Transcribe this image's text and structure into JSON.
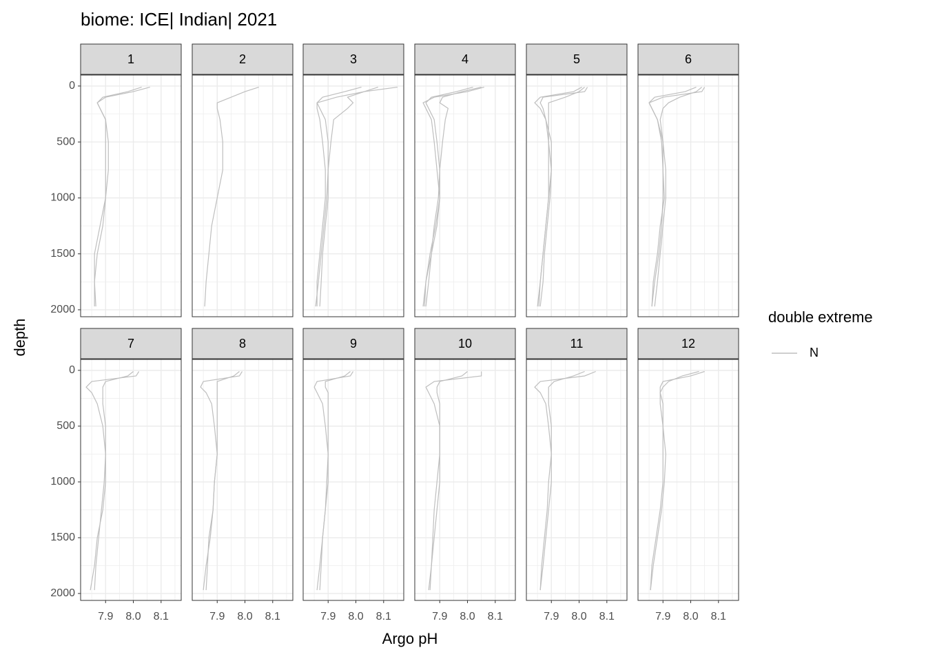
{
  "chart_data": {
    "type": "line",
    "title": "biome: ICE| Indian| 2021",
    "x_label": "Argo pH",
    "y_label": "depth",
    "xlim": [
      7.81,
      8.1725
    ],
    "xticks": [
      7.9,
      {
        "value": 8.0,
        "label": "8.0"
      },
      8.1
    ],
    "x_minor_grid": [
      7.85,
      7.95,
      8.05,
      8.15
    ],
    "ylim": [
      -98,
      2062
    ],
    "y_reversed": true,
    "yticks": [
      0,
      500,
      1000,
      1500,
      2000
    ],
    "y_minor_grid": [
      250,
      750,
      1250,
      1750
    ],
    "grid": true,
    "legend": {
      "title": "double extreme",
      "entries": [
        {
          "name": "N",
          "color": "#bebebe"
        }
      ]
    },
    "y": [
      10,
      50,
      100,
      150,
      200,
      300,
      500,
      750,
      1000,
      1250,
      1500,
      1750,
      1970
    ],
    "facets": [
      {
        "label": "1",
        "series": [
          {
            "values": [
              8.06,
              8.0,
              7.9,
              7.87,
              7.88,
              7.9,
              7.91,
              7.91,
              7.9,
              7.89,
              7.87,
              7.86,
              7.86
            ]
          },
          {
            "values": [
              8.03,
              7.98,
              7.89,
              7.87,
              7.88,
              7.9,
              7.9,
              7.9,
              7.9,
              7.88,
              7.86,
              7.86,
              7.865
            ]
          }
        ]
      },
      {
        "label": "2",
        "series": [
          {
            "values": [
              8.05,
              8.0,
              7.95,
              7.9,
              7.9,
              7.91,
              7.92,
              7.92,
              7.9,
              7.88,
              7.87,
              7.86,
              7.855
            ]
          }
        ]
      },
      {
        "label": "3",
        "series": [
          {
            "values": [
              8.08,
              8.03,
              7.93,
              7.86,
              7.86,
              7.87,
              7.88,
              7.89,
              7.89,
              7.88,
              7.87,
              7.86,
              7.86
            ]
          },
          {
            "values": [
              8.15,
              8.03,
              7.97,
              7.99,
              7.97,
              7.92,
              7.91,
              7.9,
              7.9,
              7.89,
              7.88,
              7.875,
              7.87
            ]
          },
          {
            "values": [
              8.02,
              7.96,
              7.88,
              7.86,
              7.87,
              7.89,
              7.9,
              7.9,
              7.895,
              7.885,
              7.875,
              7.865,
              7.855
            ]
          }
        ]
      },
      {
        "label": "4",
        "series": [
          {
            "values": [
              8.06,
              8.0,
              7.88,
              7.84,
              7.85,
              7.87,
              7.88,
              7.89,
              7.9,
              7.89,
              7.87,
              7.85,
              7.84
            ]
          },
          {
            "values": [
              8.05,
              7.98,
              7.91,
              7.9,
              7.93,
              7.92,
              7.91,
              7.9,
              7.895,
              7.88,
              7.87,
              7.86,
              7.85
            ]
          },
          {
            "values": [
              8.02,
              7.96,
              7.87,
              7.85,
              7.86,
              7.88,
              7.89,
              7.9,
              7.9,
              7.885,
              7.865,
              7.85,
              7.845
            ]
          }
        ]
      },
      {
        "label": "5",
        "series": [
          {
            "values": [
              8.03,
              8.02,
              7.87,
              7.86,
              7.87,
              7.88,
              7.9,
              7.9,
              7.89,
              7.88,
              7.87,
              7.86,
              7.855
            ]
          },
          {
            "values": [
              8.02,
              8.0,
              7.95,
              7.89,
              7.89,
              7.89,
              7.89,
              7.9,
              7.895,
              7.885,
              7.875,
              7.87,
              7.86
            ]
          },
          {
            "values": [
              8.01,
              7.98,
              7.86,
              7.84,
              7.86,
              7.88,
              7.89,
              7.89,
              7.89,
              7.88,
              7.87,
              7.86,
              7.85
            ]
          }
        ]
      },
      {
        "label": "6",
        "series": [
          {
            "values": [
              8.05,
              8.04,
              7.9,
              7.85,
              7.86,
              7.88,
              7.9,
              7.91,
              7.91,
              7.9,
              7.89,
              7.88,
              7.87
            ]
          },
          {
            "values": [
              8.04,
              8.02,
              7.96,
              7.92,
              7.9,
              7.89,
              7.9,
              7.9,
              7.905,
              7.89,
              7.88,
              7.865,
              7.86
            ]
          },
          {
            "values": [
              8.02,
              7.98,
              7.87,
              7.85,
              7.86,
              7.88,
              7.895,
              7.9,
              7.9,
              7.895,
              7.885,
              7.87,
              7.86
            ]
          }
        ]
      },
      {
        "label": "7",
        "series": [
          {
            "values": [
              8.02,
              8.01,
              7.85,
              7.83,
              7.85,
              7.87,
              7.89,
              7.9,
              7.9,
              7.89,
              7.87,
              7.86,
              7.845
            ]
          },
          {
            "values": [
              8.0,
              7.98,
              7.9,
              7.89,
              7.89,
              7.89,
              7.9,
              7.9,
              7.895,
              7.885,
              7.875,
              7.865,
              7.86
            ]
          }
        ]
      },
      {
        "label": "8",
        "series": [
          {
            "values": [
              7.99,
              7.98,
              7.85,
              7.84,
              7.86,
              7.88,
              7.89,
              7.9,
              7.89,
              7.885,
              7.875,
              7.86,
              7.85
            ]
          },
          {
            "values": [
              7.98,
              7.96,
              7.9,
              7.9,
              7.9,
              7.9,
              7.9,
              7.9,
              7.89,
              7.885,
              7.87,
              7.865,
              7.86
            ]
          }
        ]
      },
      {
        "label": "9",
        "series": [
          {
            "values": [
              7.99,
              7.98,
              7.86,
              7.85,
              7.86,
              7.88,
              7.89,
              7.9,
              7.9,
              7.89,
              7.88,
              7.87,
              7.86
            ]
          },
          {
            "values": [
              7.98,
              7.96,
              7.89,
              7.89,
              7.9,
              7.9,
              7.9,
              7.9,
              7.895,
              7.89,
              7.88,
              7.875,
              7.87
            ]
          }
        ]
      },
      {
        "label": "10",
        "series": [
          {
            "values": [
              8.05,
              8.05,
              7.88,
              7.85,
              7.86,
              7.88,
              7.9,
              7.9,
              7.9,
              7.89,
              7.88,
              7.87,
              7.86
            ]
          },
          {
            "values": [
              8.0,
              7.98,
              7.9,
              7.89,
              7.89,
              7.9,
              7.9,
              7.9,
              7.89,
              7.88,
              7.875,
              7.87,
              7.865
            ]
          }
        ]
      },
      {
        "label": "11",
        "series": [
          {
            "values": [
              8.06,
              8.02,
              7.86,
              7.84,
              7.86,
              7.88,
              7.89,
              7.9,
              7.9,
              7.89,
              7.88,
              7.87,
              7.86
            ]
          },
          {
            "values": [
              8.02,
              7.98,
              7.91,
              7.89,
              7.89,
              7.89,
              7.9,
              7.9,
              7.89,
              7.885,
              7.875,
              7.865,
              7.86
            ]
          }
        ]
      },
      {
        "label": "12",
        "series": [
          {
            "values": [
              8.05,
              8.0,
              7.9,
              7.89,
              7.89,
              7.9,
              7.9,
              7.91,
              7.905,
              7.895,
              7.88,
              7.865,
              7.855
            ]
          },
          {
            "values": [
              8.03,
              7.97,
              7.92,
              7.9,
              7.89,
              7.89,
              7.9,
              7.9,
              7.9,
              7.89,
              7.875,
              7.86,
              7.855
            ]
          }
        ]
      }
    ]
  }
}
